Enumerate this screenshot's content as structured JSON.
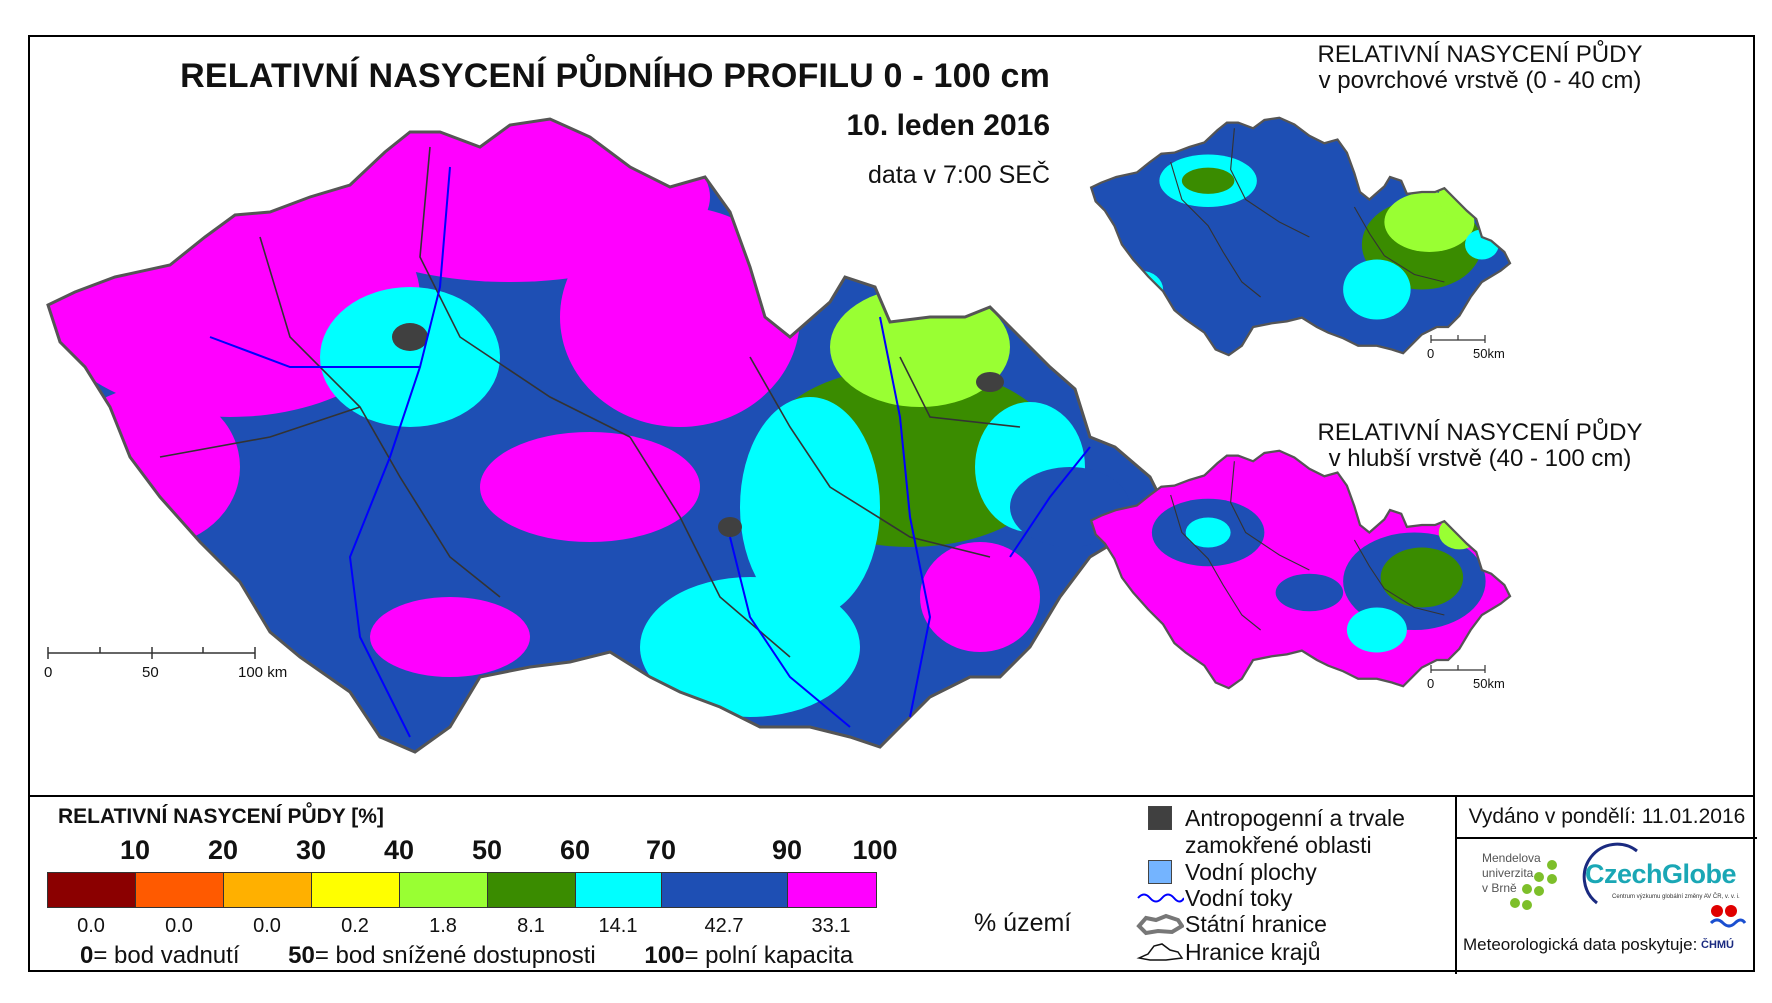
{
  "map": {
    "title": "RELATIVNÍ NASYCENÍ PŮDNÍHO PROFILU 0 - 100 cm",
    "date": "10. leden 2016",
    "data_time": "data v 7:00 SEČ",
    "scale": {
      "zero": "0",
      "mid": "50",
      "end": "100 km"
    }
  },
  "insets": [
    {
      "title_line1": "RELATIVNÍ NASYCENÍ PŮDY",
      "title_line2": "v povrchové vrstvě (0 - 40 cm)",
      "scale_zero": "0",
      "scale_end": "50km"
    },
    {
      "title_line1": "RELATIVNÍ NASYCENÍ PŮDY",
      "title_line2": "v hlubší vrstvě (40 - 100 cm)",
      "scale_zero": "0",
      "scale_end": "50km"
    }
  ],
  "legend": {
    "title": "RELATIVNÍ NASYCENÍ PŮDY [%]",
    "tick_labels": [
      "10",
      "20",
      "30",
      "40",
      "50",
      "60",
      "70",
      "90",
      "100"
    ],
    "classes": [
      {
        "color": "#8b0000",
        "pct": "0.0"
      },
      {
        "color": "#ff5a00",
        "pct": "0.0"
      },
      {
        "color": "#ffb000",
        "pct": "0.0"
      },
      {
        "color": "#ffff00",
        "pct": "0.2"
      },
      {
        "color": "#99ff33",
        "pct": "1.8"
      },
      {
        "color": "#3a8c00",
        "pct": "8.1"
      },
      {
        "color": "#00ffff",
        "pct": "14.1"
      },
      {
        "color": "#1e4fb4",
        "pct": "42.7"
      },
      {
        "color": "#ff00ff",
        "pct": "33.1"
      }
    ],
    "pct_unit": "% území",
    "definitions": [
      {
        "value": "0",
        "text": "= bod vadnutí"
      },
      {
        "value": "50",
        "text": "= bod snížené dostupnosti"
      },
      {
        "value": "100",
        "text": "= polní kapacita"
      }
    ]
  },
  "symbols": {
    "anthropogenic_line1": "Antropogenní a trvale",
    "anthropogenic_line2": "zamokřené oblasti",
    "water_bodies": "Vodní plochy",
    "rivers": "Vodní toky",
    "state_border": "Státní hranice",
    "region_border": "Hranice krajů",
    "colors": {
      "anthropogenic": "#404040",
      "water_bodies": "#74b4ff",
      "rivers": "#0000ff"
    }
  },
  "footer": {
    "issued": "Vydáno v pondělí: 11.01.2016",
    "mendel_line1": "Mendelova",
    "mendel_line2": "univerzita",
    "mendel_line3": "v Brně",
    "czechglobe": "CzechGlobe",
    "czechglobe_sub": "Centrum výzkumu globální změny AV ČR, v. v. i.",
    "met_data": "Meteorologická data poskytuje:",
    "chmu": "ČHMÚ"
  }
}
